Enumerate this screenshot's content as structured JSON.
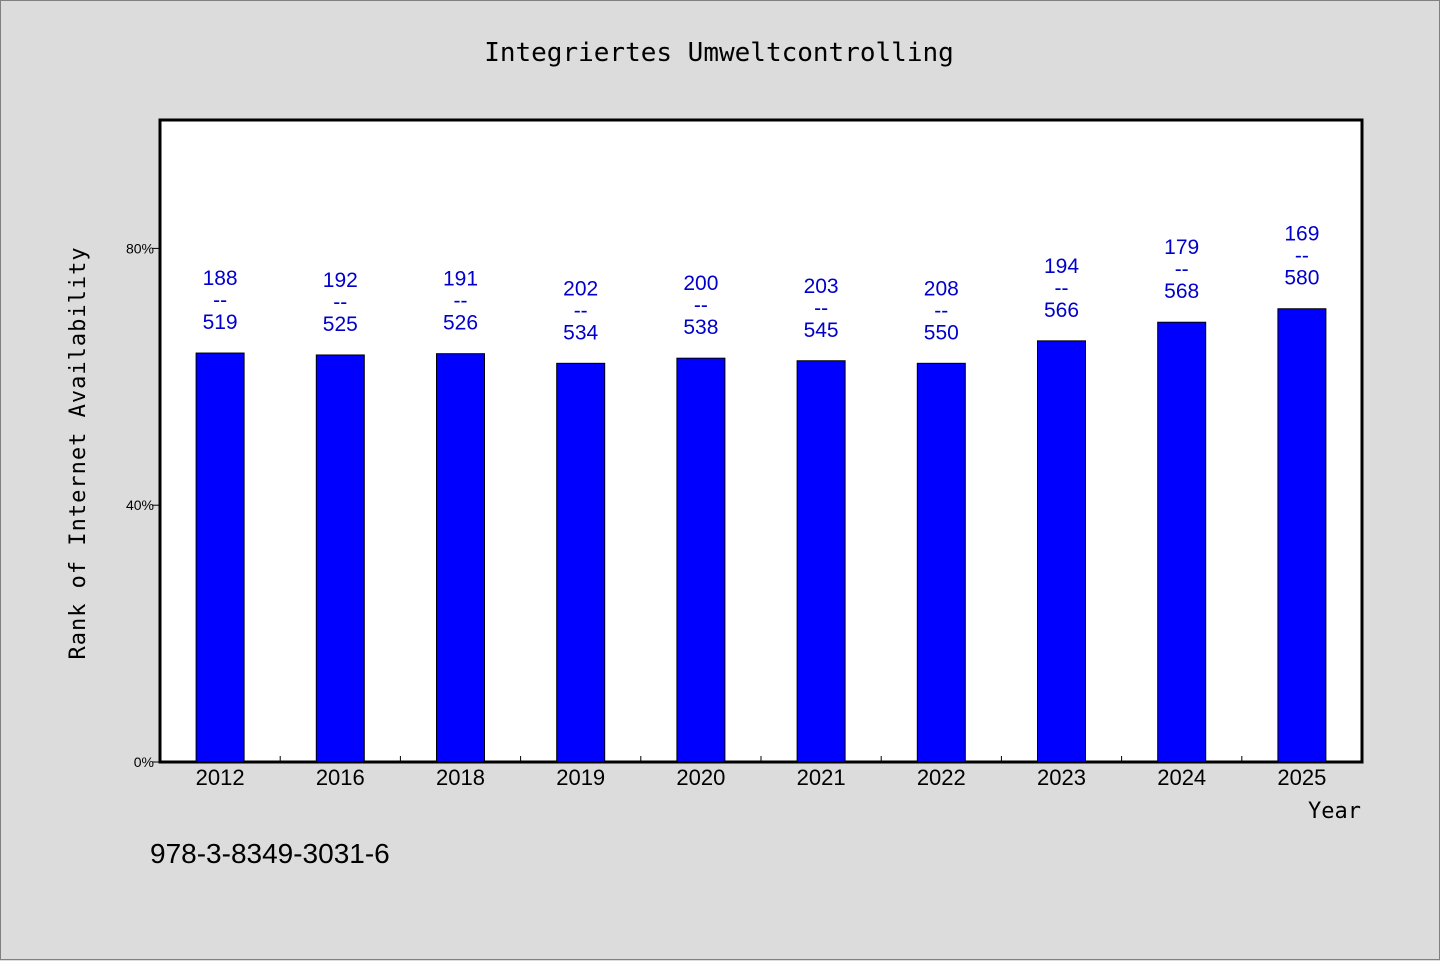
{
  "chart_data": {
    "type": "bar",
    "title": "Integriertes Umweltcontrolling",
    "xlabel": "Year",
    "ylabel": "Rank of Internet Availability",
    "categories": [
      "2012",
      "2016",
      "2018",
      "2019",
      "2020",
      "2021",
      "2022",
      "2023",
      "2024",
      "2025"
    ],
    "values": [
      63.7,
      63.4,
      63.6,
      62.1,
      62.9,
      62.5,
      62.1,
      65.6,
      68.5,
      70.6
    ],
    "ranks": [
      "188",
      "192",
      "191",
      "202",
      "200",
      "203",
      "208",
      "194",
      "179",
      "169"
    ],
    "separator": "--",
    "totals": [
      "519",
      "525",
      "526",
      "534",
      "538",
      "545",
      "550",
      "566",
      "568",
      "580"
    ],
    "ylim": [
      0,
      100
    ],
    "yticks": [
      0,
      40,
      80
    ],
    "ytick_labels": [
      "0%",
      "40%",
      "80%"
    ],
    "bar_color": "#0000ff",
    "label_color": "#0000cc",
    "grid": false
  },
  "footer": {
    "isbn": "978-3-8349-3031-6"
  }
}
